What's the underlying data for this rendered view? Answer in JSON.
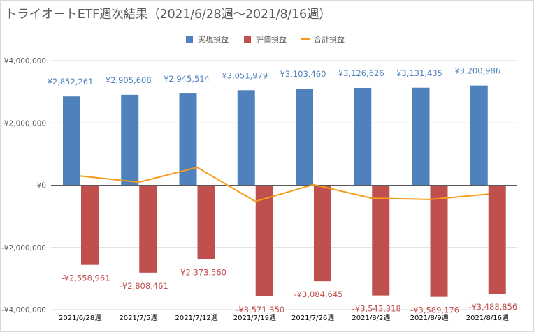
{
  "title": "トライオートETF週次結果（2021/6/28週～2021/8/16週）",
  "colors": {
    "realized": "#4f81bd",
    "unrealized": "#c0504d",
    "total": "#f59c1a",
    "grid": "#d9d9d9",
    "axis": "#595959"
  },
  "chart_data": {
    "type": "bar",
    "title": "トライオートETF週次結果（2021/6/28週～2021/8/16週）",
    "categories": [
      "2021/6/28週",
      "2021/7/5週",
      "2021/7/12週",
      "2021/7/19週",
      "2021/7/26週",
      "2021/8/2週",
      "2021/8/9週",
      "2021/8/16週"
    ],
    "ylim": [
      -4000000,
      4000000
    ],
    "yticks": [
      4000000,
      2000000,
      0,
      -2000000,
      -4000000
    ],
    "ytick_labels": [
      "¥4,000,000",
      "¥2,000,000",
      "¥0",
      "-¥2,000,000",
      "-¥4,000,000"
    ],
    "legend_position": "top-center",
    "grid": true,
    "series": [
      {
        "name": "実現損益",
        "type": "bar",
        "values": [
          2852261,
          2905608,
          2945514,
          3051979,
          3103460,
          3126626,
          3131435,
          3200986
        ],
        "labels": [
          "¥2,852,261",
          "¥2,905,608",
          "¥2,945,514",
          "¥3,051,979",
          "¥3,103,460",
          "¥3,126,626",
          "¥3,131,435",
          "¥3,200,986"
        ]
      },
      {
        "name": "評価損益",
        "type": "bar",
        "values": [
          -2558961,
          -2808461,
          -2373560,
          -3571350,
          -3084645,
          -3543318,
          -3589176,
          -3488856
        ],
        "labels": [
          "-¥2,558,961",
          "-¥2,808,461",
          "-¥2,373,560",
          "-¥3,571,350",
          "-¥3,084,645",
          "-¥3,543,318",
          "-¥3,589,176",
          "-¥3,488,856"
        ]
      },
      {
        "name": "合計損益",
        "type": "line",
        "values": [
          293300,
          97147,
          571954,
          -519371,
          18815,
          -416692,
          -457741,
          -287870
        ]
      }
    ]
  }
}
